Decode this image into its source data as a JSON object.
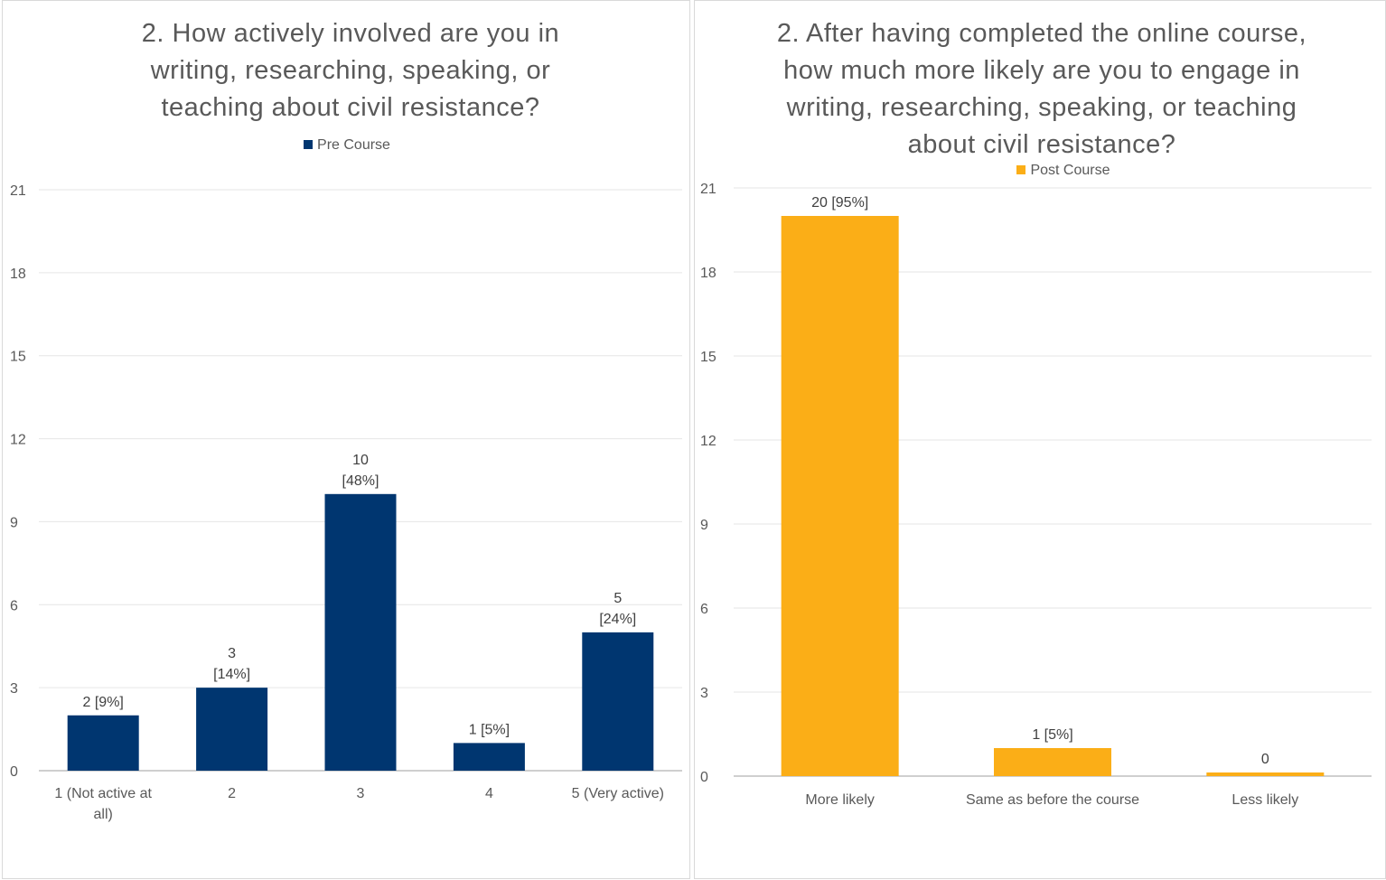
{
  "chart_data": [
    {
      "type": "bar",
      "title": "2. How actively involved are you in writing, researching, speaking, or teaching about civil resistance?",
      "legend": "Pre Course",
      "color": "#003670",
      "categories": [
        "1 (Not active at all)",
        "2",
        "3",
        "4",
        "5 (Very active)"
      ],
      "values": [
        2,
        3,
        10,
        1,
        5
      ],
      "data_labels": [
        "2 [9%]",
        "3 [14%]",
        "10 [48%]",
        "1 [5%]",
        "5 [24%]"
      ],
      "ylim": [
        0,
        21
      ],
      "yticks": [
        0,
        3,
        6,
        9,
        12,
        15,
        18,
        21
      ],
      "grid": true,
      "legend_position": "top"
    },
    {
      "type": "bar",
      "title": "2. After having completed the online course, how much more likely are you to engage in writing, researching, speaking, or teaching about civil resistance?",
      "legend": "Post Course",
      "color": "#FBAE17",
      "categories": [
        "More likely",
        "Same as before the course",
        "Less likely"
      ],
      "values": [
        20,
        1,
        0
      ],
      "data_labels": [
        "20 [95%]",
        "1 [5%]",
        "0"
      ],
      "ylim": [
        0,
        21
      ],
      "yticks": [
        0,
        3,
        6,
        9,
        12,
        15,
        18,
        21
      ],
      "grid": true,
      "legend_position": "top"
    }
  ]
}
